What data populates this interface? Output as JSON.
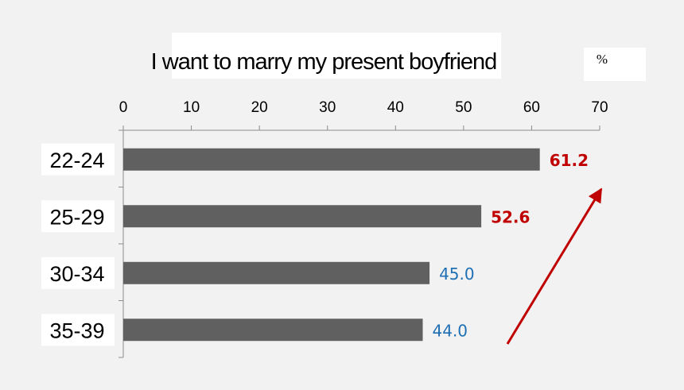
{
  "chart_data": {
    "type": "bar",
    "orientation": "horizontal",
    "title": "I want to marry my present boyfriend",
    "unit": "%",
    "categories": [
      "22-24",
      "25-29",
      "30-34",
      "35-39"
    ],
    "values": [
      61.2,
      52.6,
      45.0,
      44.0
    ],
    "value_labels": [
      "61.2",
      "52.6",
      "45.0",
      "44.0"
    ],
    "xlim": [
      0,
      70
    ],
    "ticks": [
      0,
      10,
      20,
      30,
      40,
      50,
      60,
      70
    ],
    "axis_position": "top",
    "grid": false,
    "bar_color": "#606060",
    "label_colors": [
      "#c00000",
      "#c00000",
      "#1f6fb5",
      "#1f6fb5"
    ],
    "label_bold": [
      true,
      true,
      false,
      false
    ],
    "annotation": {
      "type": "arrow",
      "color": "#c00000",
      "meaning": "upward trend toward younger ages"
    }
  }
}
